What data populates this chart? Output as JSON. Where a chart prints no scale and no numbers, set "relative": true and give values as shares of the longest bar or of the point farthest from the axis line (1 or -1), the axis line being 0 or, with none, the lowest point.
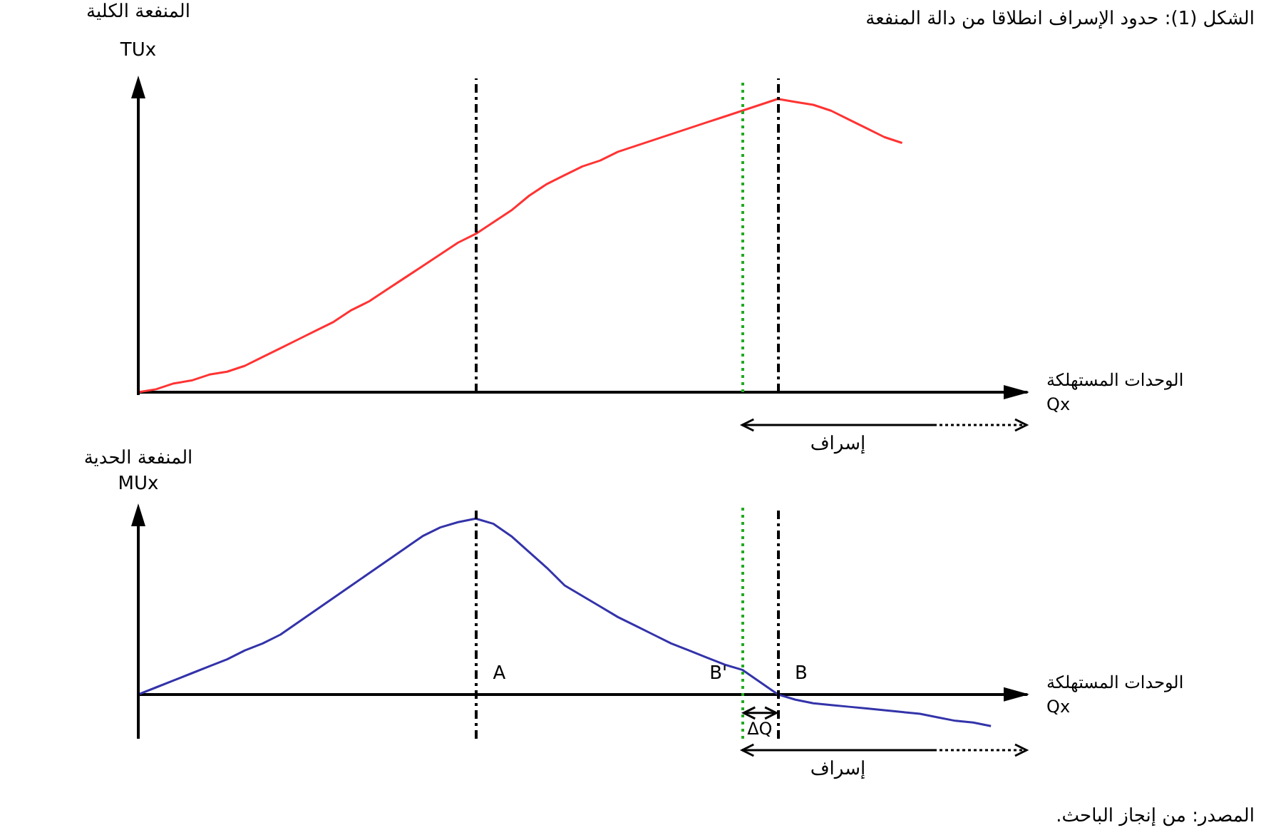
{
  "chart_data": [
    {
      "type": "line",
      "title": "الشكل (1): حدود الإسراف انطلاقا من دالة المنفعة",
      "ylabel": "المنفعة الكلية\nTUx",
      "xlabel": "الوحدات المستهلكة\nQx",
      "relative": true,
      "marker": "none",
      "line_style": "solid",
      "categories": [
        null,
        null,
        null,
        null,
        null,
        null,
        null,
        null,
        null,
        null,
        null,
        null,
        null,
        null,
        null,
        null,
        null,
        null,
        null,
        null,
        null,
        null,
        null,
        null,
        null,
        null,
        null,
        null,
        null,
        null,
        null,
        null,
        null,
        null,
        null,
        null,
        null,
        null,
        null,
        null,
        null,
        null,
        null,
        null,
        null,
        null,
        null,
        null,
        null,
        null,
        null
      ],
      "series": [
        {
          "color": "#ff3333",
          "values": [
            0,
            0.01,
            0.03,
            0.04,
            0.06,
            0.07,
            0.09,
            0.12,
            0.15,
            0.18,
            0.21,
            0.24,
            0.28,
            0.31,
            0.35,
            0.39,
            0.43,
            0.47,
            0.51,
            0.54,
            0.58,
            0.62,
            0.67,
            0.71,
            0.74,
            0.77,
            0.79,
            0.82,
            0.84,
            0.86,
            0.88,
            0.9,
            0.92,
            0.94,
            0.96,
            0.98,
            1,
            0.99,
            0.98,
            0.96,
            0.93,
            0.9,
            0.87,
            0.85,
            null,
            null,
            null,
            null,
            null,
            null,
            null
          ]
        }
      ],
      "annotations": [
        "إسراف"
      ]
    },
    {
      "type": "line",
      "ylabel": "المنفعة الحدية\nMUx",
      "xlabel": "الوحدات المستهلكة\nQx",
      "relative": true,
      "marker": "none",
      "line_style": "solid",
      "categories": [
        null,
        null,
        null,
        null,
        null,
        null,
        null,
        null,
        null,
        null,
        null,
        null,
        null,
        null,
        null,
        null,
        null,
        null,
        null,
        null,
        null,
        null,
        null,
        null,
        null,
        null,
        null,
        null,
        null,
        null,
        null,
        null,
        null,
        null,
        null,
        null,
        null,
        null,
        null,
        null,
        null,
        null,
        null,
        null,
        null,
        null,
        null,
        null,
        null,
        null,
        null
      ],
      "series": [
        {
          "color": "#3333aa",
          "values": [
            0,
            0.04,
            0.08,
            0.12,
            0.16,
            0.2,
            0.25,
            0.29,
            0.34,
            0.41,
            0.48,
            0.55,
            0.62,
            0.69,
            0.76,
            0.83,
            0.9,
            0.95,
            0.98,
            1,
            0.97,
            0.9,
            0.81,
            0.72,
            0.62,
            0.56,
            0.5,
            0.44,
            0.39,
            0.34,
            0.29,
            0.25,
            0.21,
            0.17,
            0.14,
            0.07,
            0,
            -0.03,
            -0.05,
            -0.06,
            -0.07,
            -0.08,
            -0.09,
            -0.1,
            -0.11,
            -0.13,
            -0.15,
            -0.16,
            -0.18,
            null,
            null
          ]
        }
      ],
      "annotations": [
        "A",
        "B'",
        "B",
        "ΔQ",
        "إسراف",
        "المصدر: من إنجاز الباحث."
      ]
    }
  ]
}
